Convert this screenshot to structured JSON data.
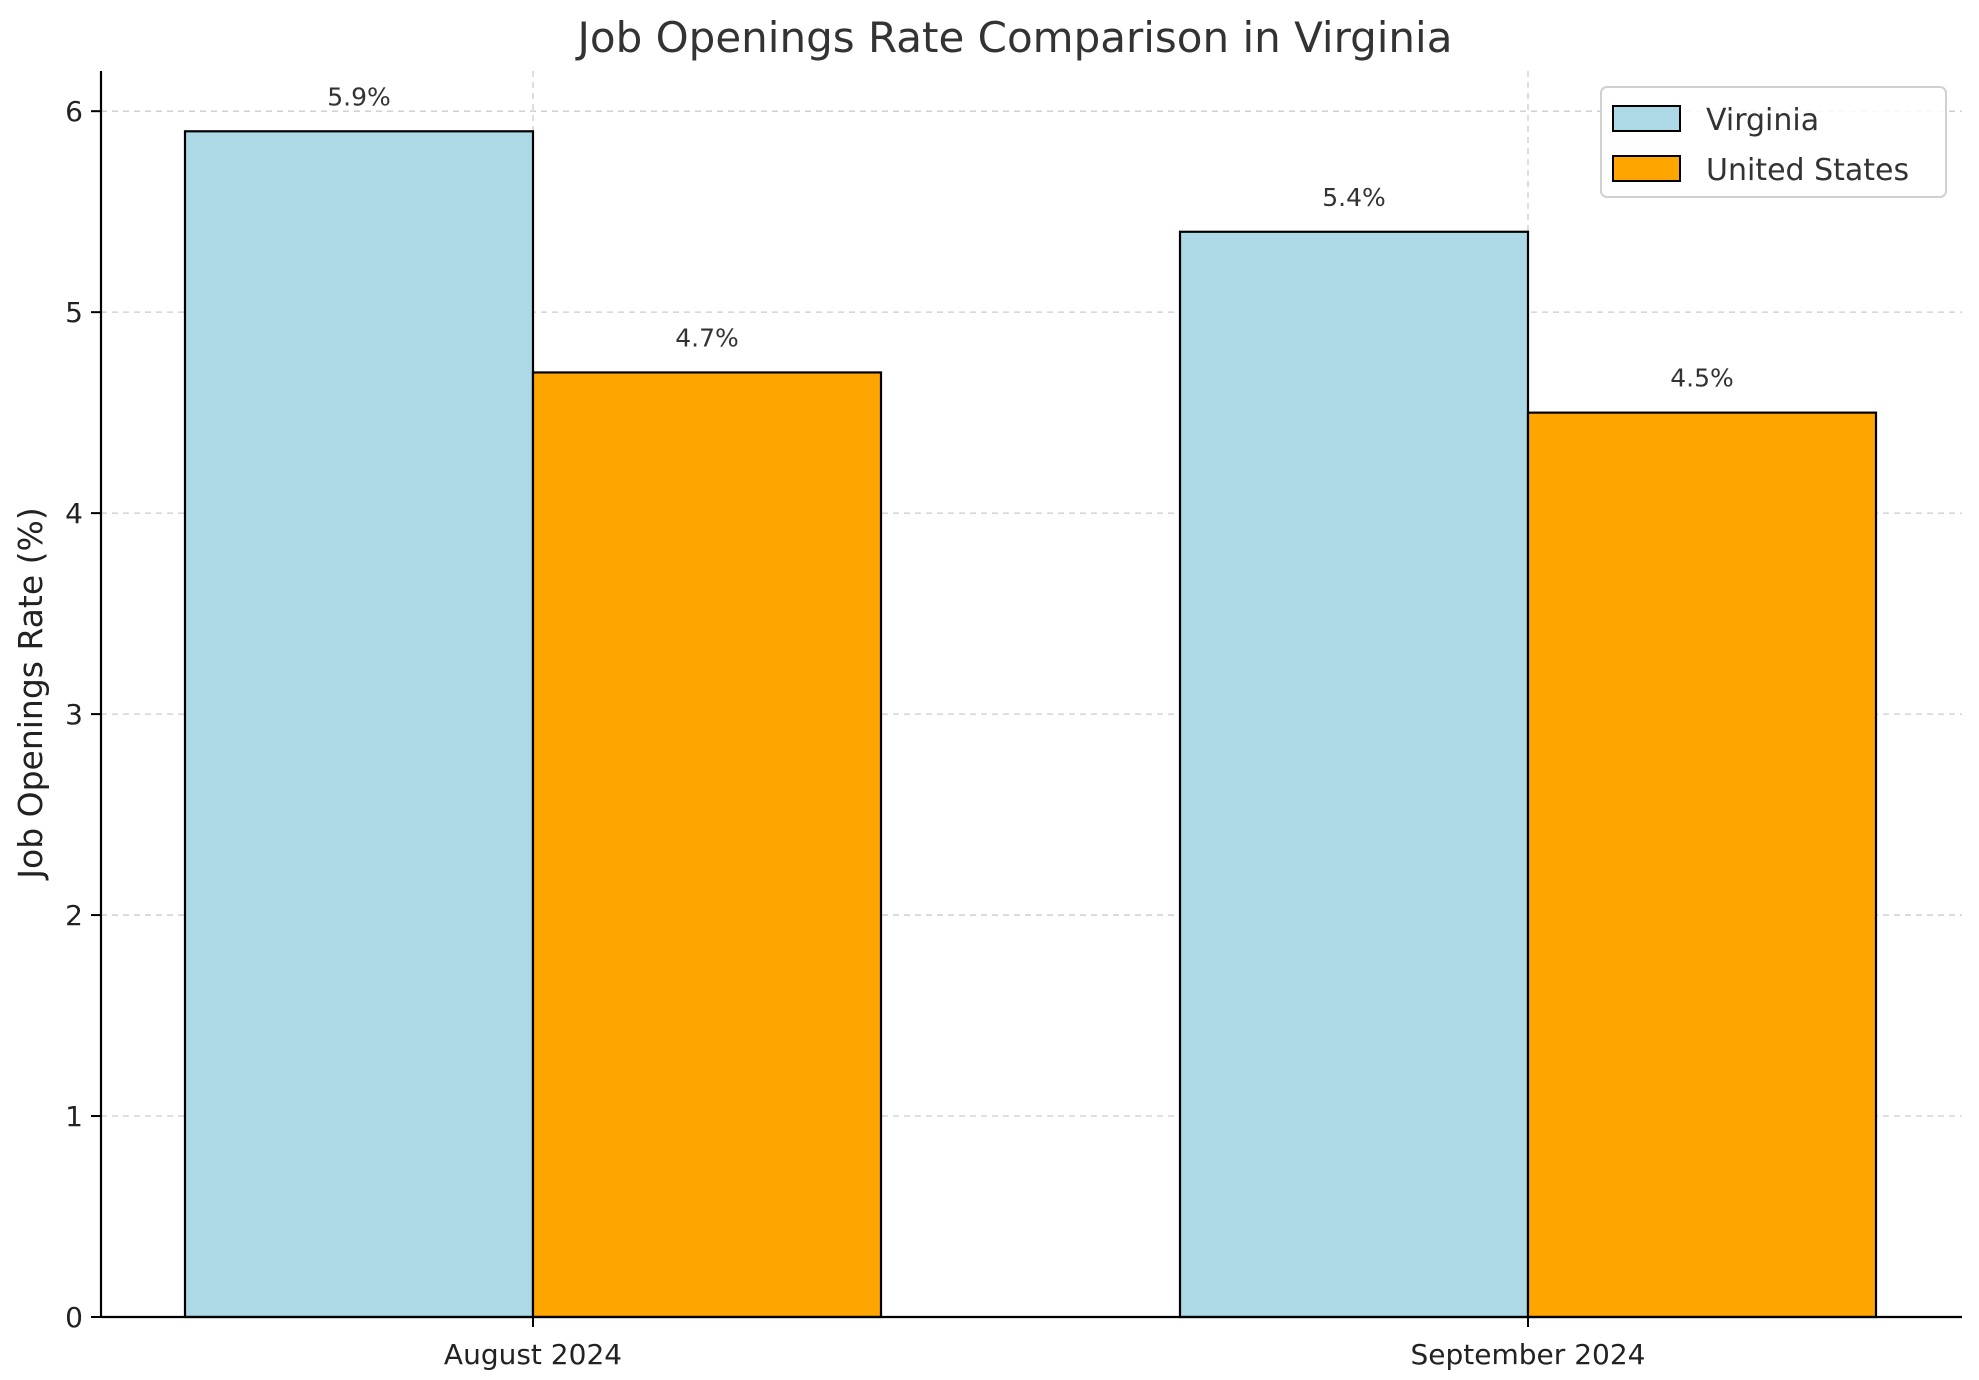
{
  "chart_data": {
    "type": "bar",
    "title": "Job Openings Rate Comparison in Virginia",
    "xlabel": "",
    "ylabel": "Job Openings Rate (%)",
    "categories": [
      "August 2024",
      "September 2024"
    ],
    "series": [
      {
        "name": "Virginia",
        "values": [
          5.9,
          5.4
        ],
        "labels": [
          "5.9%",
          "5.4%"
        ],
        "color": "#add8e6"
      },
      {
        "name": "United States",
        "values": [
          4.7,
          4.5
        ],
        "labels": [
          "4.7%",
          "4.5%"
        ],
        "color": "#ffa500"
      }
    ],
    "ylim": [
      0,
      6.2
    ],
    "yticks": [
      0,
      1,
      2,
      3,
      4,
      5,
      6
    ],
    "grid": true,
    "legend": "top-right"
  }
}
